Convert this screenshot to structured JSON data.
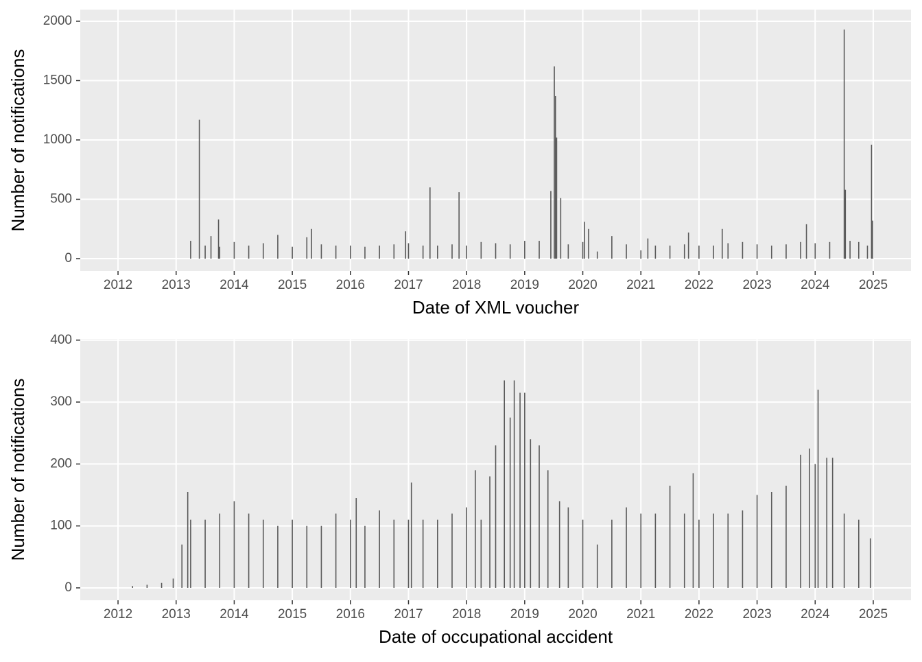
{
  "chart_data": [
    {
      "type": "bar",
      "x_label": "Date of XML voucher",
      "y_label": "Number of notifications",
      "color": "#595959",
      "x": [
        2013.25,
        2013.4,
        2013.5,
        2013.6,
        2013.73,
        2013.75,
        2014.0,
        2014.25,
        2014.5,
        2014.75,
        2015.0,
        2015.25,
        2015.33,
        2015.5,
        2015.75,
        2016.0,
        2016.25,
        2016.5,
        2016.75,
        2016.95,
        2017.0,
        2017.25,
        2017.37,
        2017.5,
        2017.75,
        2017.87,
        2018.0,
        2018.25,
        2018.5,
        2018.75,
        2019.0,
        2019.25,
        2019.45,
        2019.51,
        2019.53,
        2019.55,
        2019.62,
        2019.75,
        2020.0,
        2020.03,
        2020.1,
        2020.25,
        2020.5,
        2020.75,
        2021.0,
        2021.12,
        2021.25,
        2021.5,
        2021.75,
        2021.82,
        2022.0,
        2022.25,
        2022.4,
        2022.5,
        2022.75,
        2023.0,
        2023.25,
        2023.5,
        2023.75,
        2023.85,
        2024.0,
        2024.25,
        2024.5,
        2024.52,
        2024.6,
        2024.75,
        2024.9,
        2024.97,
        2024.99
      ],
      "values": [
        150,
        1170,
        110,
        190,
        330,
        100,
        140,
        110,
        130,
        200,
        100,
        180,
        250,
        120,
        110,
        110,
        100,
        110,
        120,
        230,
        130,
        110,
        600,
        110,
        120,
        560,
        110,
        140,
        130,
        120,
        150,
        150,
        570,
        1620,
        1370,
        1020,
        510,
        120,
        140,
        310,
        250,
        60,
        190,
        120,
        70,
        170,
        110,
        110,
        120,
        220,
        110,
        110,
        250,
        130,
        140,
        120,
        110,
        120,
        140,
        290,
        130,
        140,
        1930,
        580,
        150,
        140,
        110,
        960,
        320
      ],
      "xlim": [
        2011.35,
        2025.65
      ],
      "xticks": [
        2012,
        2013,
        2014,
        2015,
        2016,
        2017,
        2018,
        2019,
        2020,
        2021,
        2022,
        2023,
        2024,
        2025
      ],
      "ylim": [
        -104,
        2098
      ],
      "yticks": [
        0,
        500,
        1000,
        1500,
        2000
      ],
      "grid": true
    },
    {
      "type": "bar",
      "x_label": "Date of occupational accident",
      "y_label": "Number of notifications",
      "color": "#595959",
      "x": [
        2012.25,
        2012.5,
        2012.75,
        2012.95,
        2013.1,
        2013.2,
        2013.25,
        2013.5,
        2013.75,
        2014.0,
        2014.25,
        2014.5,
        2014.75,
        2015.0,
        2015.25,
        2015.5,
        2015.75,
        2016.0,
        2016.1,
        2016.25,
        2016.5,
        2016.75,
        2017.0,
        2017.05,
        2017.25,
        2017.5,
        2017.75,
        2018.0,
        2018.15,
        2018.25,
        2018.4,
        2018.5,
        2018.65,
        2018.75,
        2018.82,
        2018.92,
        2019.0,
        2019.1,
        2019.25,
        2019.4,
        2019.6,
        2019.75,
        2020.0,
        2020.25,
        2020.5,
        2020.75,
        2021.0,
        2021.25,
        2021.5,
        2021.75,
        2021.9,
        2022.0,
        2022.25,
        2022.5,
        2022.75,
        2023.0,
        2023.25,
        2023.5,
        2023.75,
        2023.9,
        2024.0,
        2024.05,
        2024.2,
        2024.3,
        2024.5,
        2024.75,
        2024.95
      ],
      "values": [
        3,
        5,
        8,
        15,
        70,
        155,
        110,
        110,
        120,
        140,
        120,
        110,
        100,
        110,
        100,
        100,
        120,
        110,
        145,
        100,
        125,
        110,
        110,
        170,
        110,
        110,
        120,
        130,
        190,
        110,
        180,
        230,
        335,
        275,
        335,
        315,
        315,
        240,
        230,
        190,
        140,
        130,
        110,
        70,
        110,
        130,
        120,
        120,
        165,
        120,
        185,
        110,
        120,
        120,
        125,
        150,
        155,
        165,
        215,
        225,
        200,
        320,
        210,
        210,
        120,
        110,
        80
      ],
      "xlim": [
        2011.35,
        2025.65
      ],
      "xticks": [
        2012,
        2013,
        2014,
        2015,
        2016,
        2017,
        2018,
        2019,
        2020,
        2021,
        2022,
        2023,
        2024,
        2025
      ],
      "ylim": [
        -20,
        402
      ],
      "yticks": [
        0,
        100,
        200,
        300,
        400
      ],
      "grid": true
    }
  ]
}
